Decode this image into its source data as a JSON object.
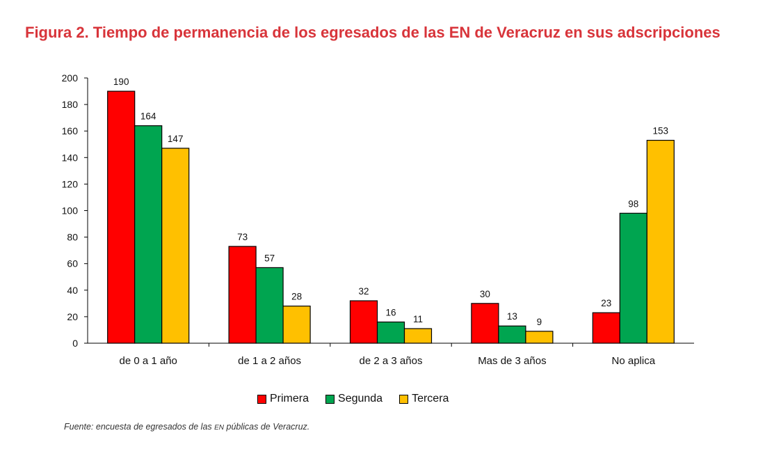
{
  "title": "Figura 2. Tiempo de permanencia de los egresados de las EN de Veracruz en sus adscripciones",
  "source": {
    "prefix": "Fuente: encuesta de egresados de las ",
    "abbr": "EN",
    "suffix": " públicas de Veracruz."
  },
  "chart_data": {
    "type": "bar",
    "categories": [
      "de 0 a 1 año",
      "de 1 a 2 años",
      "de 2 a 3 años",
      "Mas de 3 años",
      "No aplica"
    ],
    "series": [
      {
        "name": "Primera",
        "color": "#ff0000",
        "values": [
          190,
          73,
          32,
          30,
          23
        ]
      },
      {
        "name": "Segunda",
        "color": "#00a550",
        "values": [
          164,
          57,
          16,
          13,
          98
        ]
      },
      {
        "name": "Tercera",
        "color": "#ffc000",
        "values": [
          147,
          28,
          11,
          9,
          153
        ]
      }
    ],
    "ylim": [
      0,
      200
    ],
    "yticks": [
      0,
      20,
      40,
      60,
      80,
      100,
      120,
      140,
      160,
      180,
      200
    ],
    "grid": false,
    "data_labels": true,
    "legend_position": "bottom"
  }
}
